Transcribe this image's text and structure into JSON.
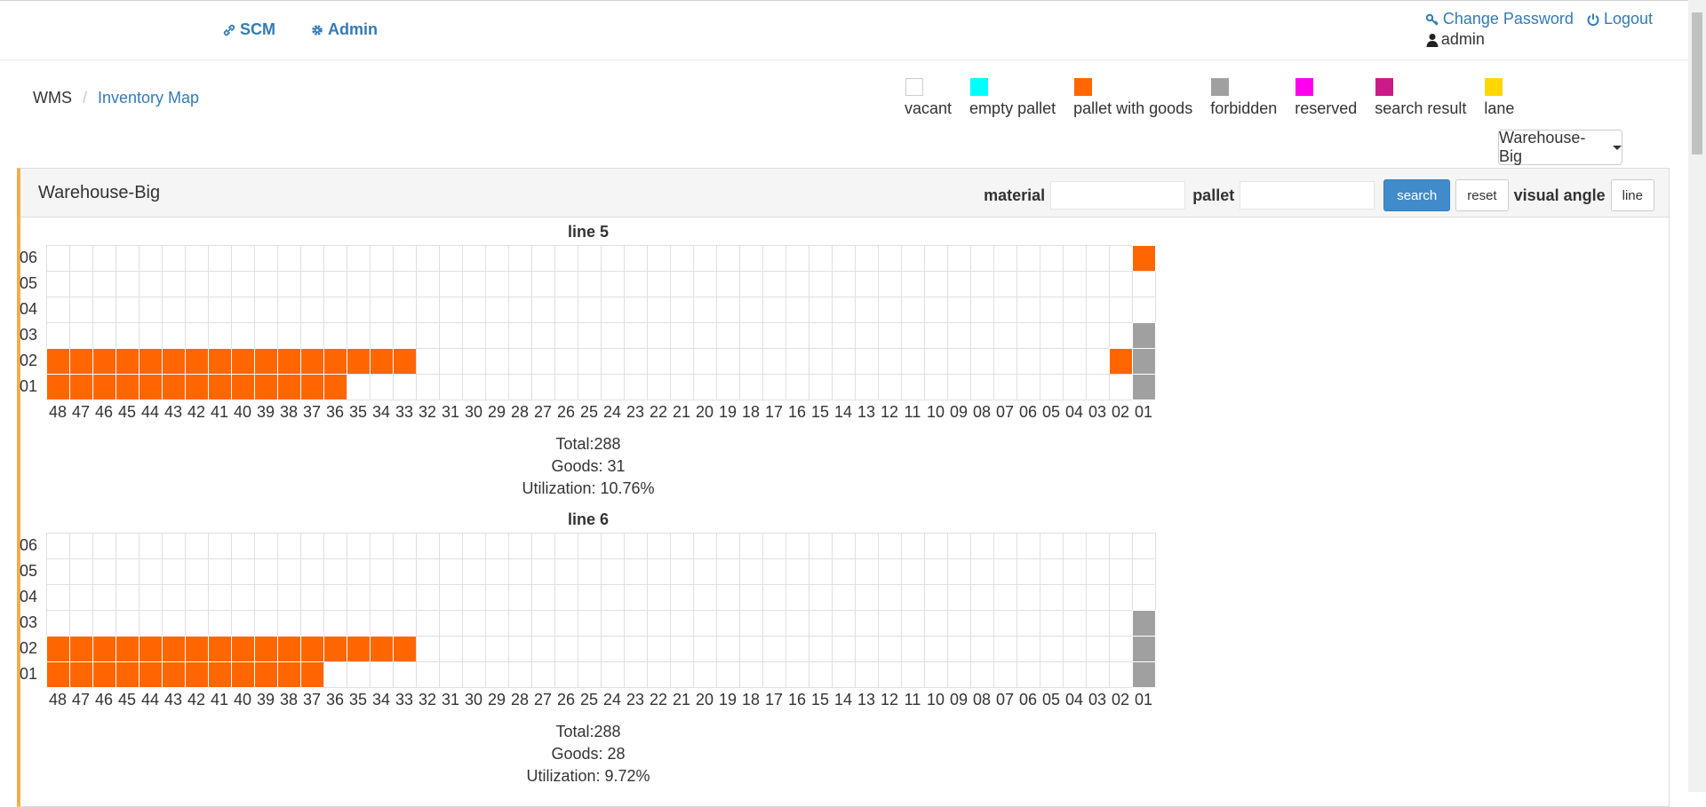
{
  "nav": {
    "scm_label": "SCM",
    "admin_label": "Admin"
  },
  "user": {
    "change_password_label": "Change Password",
    "logout_label": "Logout",
    "username": "admin"
  },
  "breadcrumb": {
    "root": "WMS",
    "separator": "/",
    "current": "Inventory Map"
  },
  "legend": [
    {
      "label": "vacant",
      "color": "#ffffff"
    },
    {
      "label": "empty pallet",
      "color": "#00ffff"
    },
    {
      "label": "pallet with goods",
      "color": "#ff6600"
    },
    {
      "label": "forbidden",
      "color": "#a0a0a0"
    },
    {
      "label": "reserved",
      "color": "#ff00ee"
    },
    {
      "label": "search result",
      "color": "#cc1a88"
    },
    {
      "label": "lane",
      "color": "#ffd700"
    }
  ],
  "warehouse_select": {
    "label": "Warehouse-Big"
  },
  "panel": {
    "title": "Warehouse-Big",
    "material_label": "material",
    "material_value": "",
    "pallet_label": "pallet",
    "pallet_value": "",
    "search_label": "search",
    "reset_label": "reset",
    "visual_angle_label": "visual angle",
    "visual_angle_value": "line"
  },
  "lines": [
    {
      "title": "line 5",
      "rows": [
        "06",
        "05",
        "04",
        "03",
        "02",
        "01"
      ],
      "cols": [
        "48",
        "47",
        "46",
        "45",
        "44",
        "43",
        "42",
        "41",
        "40",
        "39",
        "38",
        "37",
        "36",
        "35",
        "34",
        "33",
        "32",
        "31",
        "30",
        "29",
        "28",
        "27",
        "26",
        "25",
        "24",
        "23",
        "22",
        "21",
        "20",
        "19",
        "18",
        "17",
        "16",
        "15",
        "14",
        "13",
        "12",
        "11",
        "10",
        "09",
        "08",
        "07",
        "06",
        "05",
        "04",
        "03",
        "02",
        "01"
      ],
      "occupied": {
        "06": [
          "01"
        ],
        "02": [
          "48",
          "47",
          "46",
          "45",
          "44",
          "43",
          "42",
          "41",
          "40",
          "39",
          "38",
          "37",
          "36",
          "35",
          "34",
          "33",
          "02"
        ],
        "01": [
          "48",
          "47",
          "46",
          "45",
          "44",
          "43",
          "42",
          "41",
          "40",
          "39",
          "38",
          "37",
          "36"
        ]
      },
      "forbidden": {
        "03": [
          "01"
        ],
        "02": [
          "01"
        ],
        "01": [
          "01"
        ]
      },
      "total": "Total:288",
      "goods": "Goods: 31",
      "utilization": "Utilization: 10.76%"
    },
    {
      "title": "line 6",
      "rows": [
        "06",
        "05",
        "04",
        "03",
        "02",
        "01"
      ],
      "cols": [
        "48",
        "47",
        "46",
        "45",
        "44",
        "43",
        "42",
        "41",
        "40",
        "39",
        "38",
        "37",
        "36",
        "35",
        "34",
        "33",
        "32",
        "31",
        "30",
        "29",
        "28",
        "27",
        "26",
        "25",
        "24",
        "23",
        "22",
        "21",
        "20",
        "19",
        "18",
        "17",
        "16",
        "15",
        "14",
        "13",
        "12",
        "11",
        "10",
        "09",
        "08",
        "07",
        "06",
        "05",
        "04",
        "03",
        "02",
        "01"
      ],
      "occupied": {
        "02": [
          "48",
          "47",
          "46",
          "45",
          "44",
          "43",
          "42",
          "41",
          "40",
          "39",
          "38",
          "37",
          "36",
          "35",
          "34",
          "33"
        ],
        "01": [
          "48",
          "47",
          "46",
          "45",
          "44",
          "43",
          "42",
          "41",
          "40",
          "39",
          "38",
          "37"
        ]
      },
      "forbidden": {
        "03": [
          "01"
        ],
        "02": [
          "01"
        ],
        "01": [
          "01"
        ]
      },
      "total": "Total:288",
      "goods": "Goods: 28",
      "utilization": "Utilization: 9.72%"
    }
  ]
}
